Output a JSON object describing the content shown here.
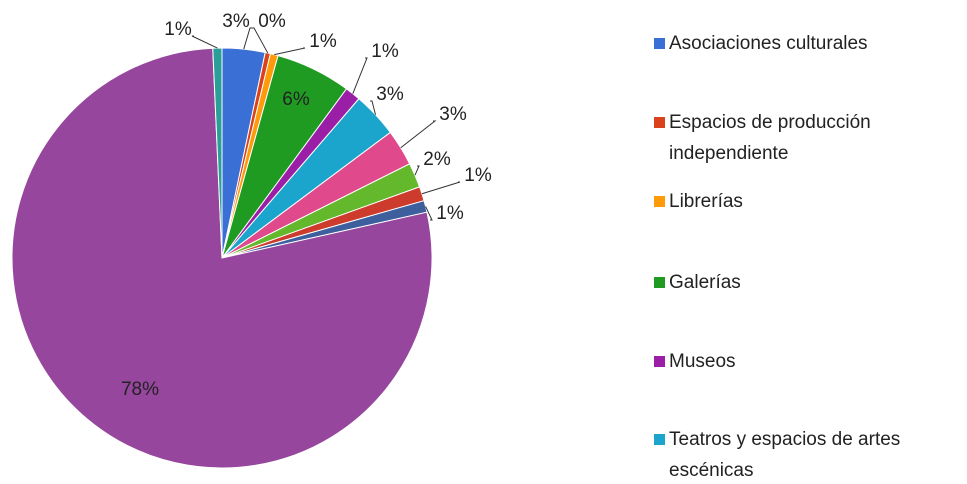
{
  "chart_data": {
    "type": "pie",
    "categories": [
      "Asociaciones culturales",
      "Espacios de producción independiente",
      "Librerías",
      "Galerías",
      "Museos",
      "Teatros y espacios de artes escénicas",
      null,
      null,
      null,
      null,
      null,
      null
    ],
    "values": [
      3.3,
      0.4,
      0.6,
      5.8,
      1.2,
      3.5,
      2.8,
      1.9,
      1.1,
      0.9,
      77.8,
      0.7
    ],
    "value_labels": [
      "3%",
      "0%",
      "1%",
      "6%",
      "1%",
      "3%",
      "3%",
      "2%",
      "1%",
      "1%",
      "78%",
      "1%"
    ],
    "colors": [
      "#3a6fd6",
      "#d9421a",
      "#ff9a0a",
      "#1f9b22",
      "#9a1fa6",
      "#1ba5cc",
      "#e0498c",
      "#63b82b",
      "#cc3b2b",
      "#3d5f9e",
      "#96469c",
      "#2a9f97"
    ]
  }
}
